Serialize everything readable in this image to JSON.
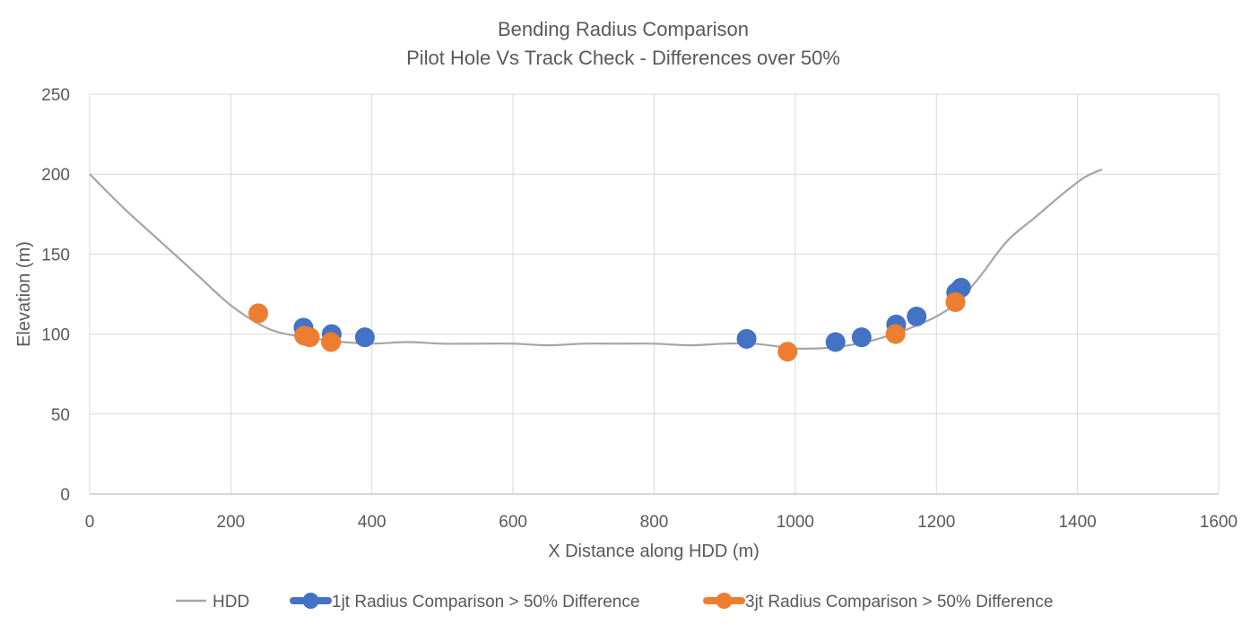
{
  "chart_data": {
    "type": "scatter",
    "title": "Bending Radius Comparison",
    "subtitle": "Pilot Hole Vs Track Check - Differences over 50%",
    "xlabel": "X Distance along HDD (m)",
    "ylabel": "Elevation (m)",
    "xlim": [
      0,
      1600
    ],
    "ylim": [
      0,
      250
    ],
    "x_ticks": [
      "0",
      "200",
      "400",
      "600",
      "800",
      "1000",
      "1200",
      "1400",
      "1600"
    ],
    "y_ticks": [
      "0",
      "50",
      "100",
      "150",
      "200",
      "250"
    ],
    "grid": true,
    "legend_position": "bottom",
    "series": [
      {
        "name": "HDD",
        "kind": "line",
        "color": "#a5a5a5",
        "x": [
          0,
          50,
          100,
          150,
          200,
          250,
          290,
          320,
          360,
          400,
          450,
          500,
          550,
          600,
          650,
          700,
          750,
          800,
          850,
          900,
          940,
          980,
          1000,
          1030,
          1060,
          1100,
          1140,
          1170,
          1200,
          1230,
          1260,
          1300,
          1340,
          1380,
          1410,
          1435
        ],
        "y": [
          200,
          178,
          158,
          138,
          118,
          104,
          99,
          97,
          95,
          94,
          95,
          94,
          94,
          94,
          93,
          94,
          94,
          94,
          93,
          94,
          94,
          92,
          91,
          91,
          92,
          95,
          100,
          105,
          111,
          120,
          135,
          158,
          173,
          188,
          198,
          203
        ]
      },
      {
        "name": "1jt Radius Comparison > 50% Difference",
        "kind": "scatter",
        "color": "#4472c4",
        "x": [
          303,
          343,
          390,
          931,
          1057,
          1094,
          1143,
          1172,
          1228,
          1235
        ],
        "y": [
          104,
          100,
          98,
          97,
          95,
          98,
          106,
          111,
          126,
          129
        ]
      },
      {
        "name": "3jt Radius Comparison > 50% Difference",
        "kind": "scatter",
        "color": "#ed7d31",
        "x": [
          239,
          304,
          312,
          342,
          989,
          1142,
          1227
        ],
        "y": [
          113,
          99,
          98,
          95,
          89,
          100,
          120
        ]
      }
    ]
  }
}
